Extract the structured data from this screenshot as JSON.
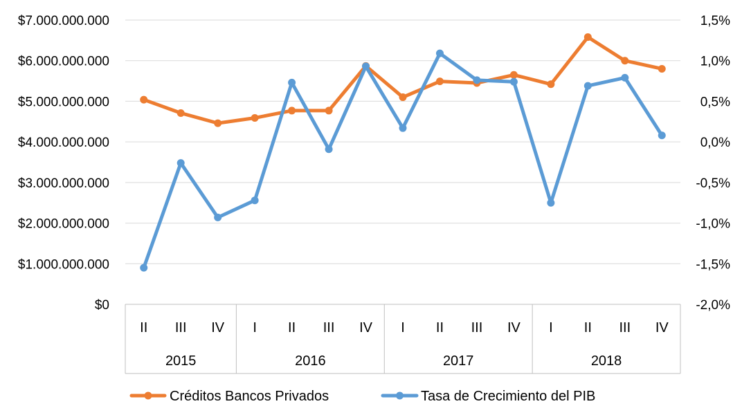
{
  "chart_data": {
    "type": "line",
    "title": "",
    "categories": [
      "II",
      "III",
      "IV",
      "I",
      "II",
      "III",
      "IV",
      "I",
      "II",
      "III",
      "IV",
      "I",
      "II",
      "III",
      "IV"
    ],
    "groups": [
      {
        "label": "2015",
        "count": 3
      },
      {
        "label": "2016",
        "count": 4
      },
      {
        "label": "2017",
        "count": 4
      },
      {
        "label": "2018",
        "count": 4
      }
    ],
    "y_left": {
      "min": 0,
      "max": 7000000000,
      "ticks": [
        0,
        1000000000,
        2000000000,
        3000000000,
        4000000000,
        5000000000,
        6000000000,
        7000000000
      ],
      "tick_labels": [
        "$0",
        "$1.000.000.000",
        "$2.000.000.000",
        "$3.000.000.000",
        "$4.000.000.000",
        "$5.000.000.000",
        "$6.000.000.000",
        "$7.000.000.000"
      ]
    },
    "y_right": {
      "min": -2.0,
      "max": 1.5,
      "ticks": [
        -2.0,
        -1.5,
        -1.0,
        -0.5,
        0.0,
        0.5,
        1.0,
        1.5
      ],
      "tick_labels": [
        "-2,0%",
        "-1,5%",
        "-1,0%",
        "-0,5%",
        "0,0%",
        "0,5%",
        "1,0%",
        "1,5%"
      ]
    },
    "series": [
      {
        "name": "Créditos Bancos Privados",
        "axis": "left",
        "color": "#ED7D31",
        "values": [
          5040000000,
          4710000000,
          4460000000,
          4590000000,
          4770000000,
          4770000000,
          5870000000,
          5100000000,
          5490000000,
          5450000000,
          5650000000,
          5420000000,
          6580000000,
          6000000000,
          5800000000
        ]
      },
      {
        "name": "Tasa de Crecimiento del PIB",
        "axis": "right",
        "color": "#5B9BD5",
        "values": [
          -1.55,
          -0.26,
          -0.93,
          -0.72,
          0.73,
          -0.09,
          0.93,
          0.17,
          1.09,
          0.76,
          0.74,
          -0.75,
          0.69,
          0.79,
          0.08
        ]
      }
    ],
    "grid": true,
    "legend": "bottom"
  }
}
